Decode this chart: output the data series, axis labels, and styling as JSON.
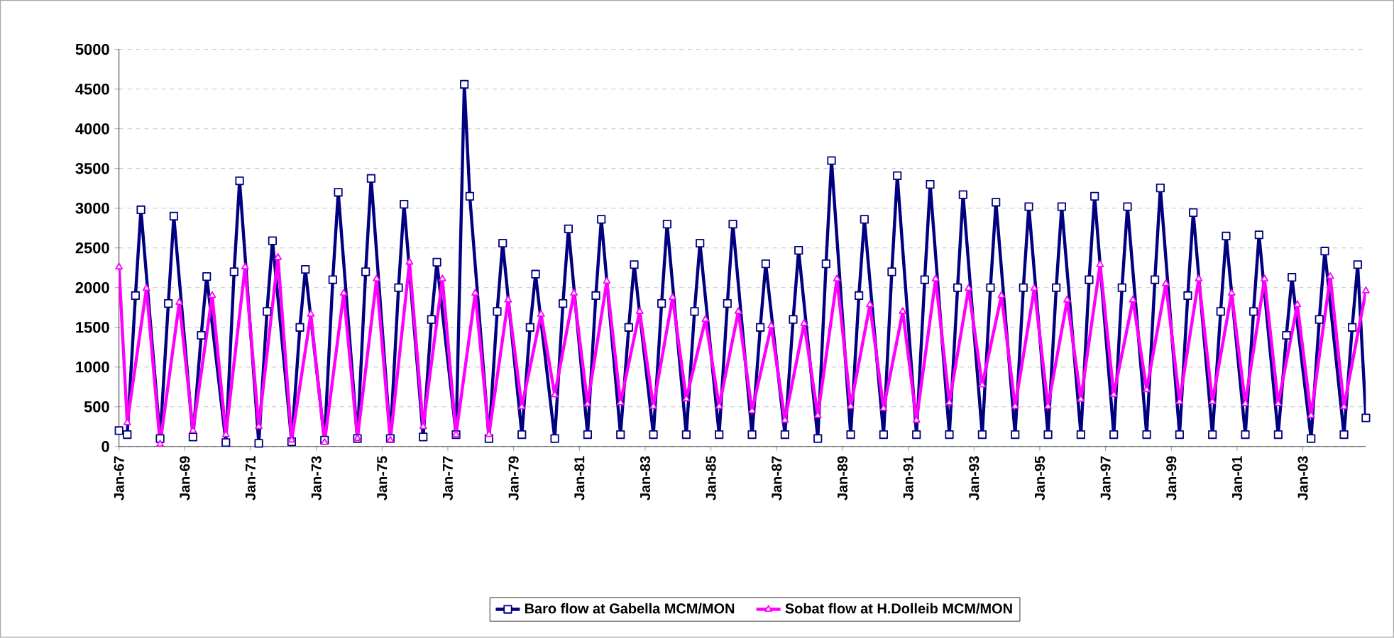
{
  "chart_data": {
    "type": "line",
    "xlim": [
      "1967-01",
      "2004-12"
    ],
    "xticks": [
      {
        "value": "1967-01",
        "label": "Jan-67"
      },
      {
        "value": "1969-01",
        "label": "Jan-69"
      },
      {
        "value": "1971-01",
        "label": "Jan-71"
      },
      {
        "value": "1973-01",
        "label": "Jan-73"
      },
      {
        "value": "1975-01",
        "label": "Jan-75"
      },
      {
        "value": "1977-01",
        "label": "Jan-77"
      },
      {
        "value": "1979-01",
        "label": "Jan-79"
      },
      {
        "value": "1981-01",
        "label": "Jan-81"
      },
      {
        "value": "1983-01",
        "label": "Jan-83"
      },
      {
        "value": "1985-01",
        "label": "Jan-85"
      },
      {
        "value": "1987-01",
        "label": "Jan-87"
      },
      {
        "value": "1989-01",
        "label": "Jan-89"
      },
      {
        "value": "1991-01",
        "label": "Jan-91"
      },
      {
        "value": "1993-01",
        "label": "Jan-93"
      },
      {
        "value": "1995-01",
        "label": "Jan-95"
      },
      {
        "value": "1997-01",
        "label": "Jan-97"
      },
      {
        "value": "1999-01",
        "label": "Jan-99"
      },
      {
        "value": "2001-01",
        "label": "Jan-01"
      },
      {
        "value": "2003-01",
        "label": "Jan-03"
      }
    ],
    "ylim": [
      0,
      5000
    ],
    "yticks": [
      0,
      500,
      1000,
      1500,
      2000,
      2500,
      3000,
      3500,
      4000,
      4500,
      5000
    ],
    "grid": "y",
    "legend": "bottom",
    "line_style": "solid",
    "series": [
      {
        "name": "Baro flow at  Gabella  MCM/MON",
        "color": "#000080",
        "marker": "square",
        "x": [
          "1967-01",
          "1967-04",
          "1967-07",
          "1967-09",
          "1968-04",
          "1968-07",
          "1968-09",
          "1969-04",
          "1969-07",
          "1969-09",
          "1970-04",
          "1970-07",
          "1970-09",
          "1971-04",
          "1971-07",
          "1971-09",
          "1972-04",
          "1972-07",
          "1972-09",
          "1973-04",
          "1973-07",
          "1973-09",
          "1974-04",
          "1974-07",
          "1974-09",
          "1975-04",
          "1975-07",
          "1975-09",
          "1976-04",
          "1976-07",
          "1976-09",
          "1977-04",
          "1977-07",
          "1977-09",
          "1978-04",
          "1978-07",
          "1978-09",
          "1979-04",
          "1979-07",
          "1979-09",
          "1980-04",
          "1980-07",
          "1980-09",
          "1981-04",
          "1981-07",
          "1981-09",
          "1982-04",
          "1982-07",
          "1982-09",
          "1983-04",
          "1983-07",
          "1983-09",
          "1984-04",
          "1984-07",
          "1984-09",
          "1985-04",
          "1985-07",
          "1985-09",
          "1986-04",
          "1986-07",
          "1986-09",
          "1987-04",
          "1987-07",
          "1987-09",
          "1988-04",
          "1988-07",
          "1988-09",
          "1989-04",
          "1989-07",
          "1989-09",
          "1990-04",
          "1990-07",
          "1990-09",
          "1991-04",
          "1991-07",
          "1991-09",
          "1992-04",
          "1992-07",
          "1992-09",
          "1993-04",
          "1993-07",
          "1993-09",
          "1994-04",
          "1994-07",
          "1994-09",
          "1995-04",
          "1995-07",
          "1995-09",
          "1996-04",
          "1996-07",
          "1996-09",
          "1997-04",
          "1997-07",
          "1997-09",
          "1998-04",
          "1998-07",
          "1998-09",
          "1999-04",
          "1999-07",
          "1999-09",
          "2000-04",
          "2000-07",
          "2000-09",
          "2001-04",
          "2001-07",
          "2001-09",
          "2002-04",
          "2002-07",
          "2002-09",
          "2003-04",
          "2003-07",
          "2003-09",
          "2004-04",
          "2004-07",
          "2004-09",
          "2004-12"
        ],
        "values": [
          200,
          150,
          1900,
          2980,
          100,
          1800,
          2900,
          120,
          1400,
          2140,
          50,
          2200,
          3345,
          40,
          1700,
          2590,
          60,
          1500,
          2230,
          80,
          2100,
          3200,
          100,
          2200,
          3375,
          100,
          2000,
          3050,
          120,
          1600,
          2320,
          150,
          4560,
          3150,
          100,
          1700,
          2560,
          150,
          1500,
          2170,
          100,
          1800,
          2740,
          150,
          1900,
          2860,
          150,
          1500,
          2290,
          150,
          1800,
          2800,
          150,
          1700,
          2560,
          150,
          1800,
          2800,
          150,
          1500,
          2300,
          150,
          1600,
          2470,
          100,
          2300,
          3600,
          150,
          1900,
          2860,
          150,
          2200,
          3410,
          150,
          2100,
          3300,
          150,
          2000,
          3170,
          150,
          2000,
          3075,
          150,
          2000,
          3020,
          150,
          2000,
          3020,
          150,
          2100,
          3150,
          150,
          2000,
          3020,
          150,
          2100,
          3255,
          150,
          1900,
          2945,
          150,
          1700,
          2650,
          150,
          1700,
          2665,
          150,
          1400,
          2130,
          100,
          1600,
          2460,
          150,
          1500,
          2290,
          360
        ]
      },
      {
        "name": "Sobat flow at  H.Dolleib  MCM/MON",
        "color": "#ff00ff",
        "marker": "triangle",
        "x": [
          "1967-01",
          "1967-04",
          "1967-11",
          "1968-04",
          "1968-11",
          "1969-04",
          "1969-11",
          "1970-04",
          "1970-11",
          "1971-04",
          "1971-11",
          "1972-04",
          "1972-11",
          "1973-04",
          "1973-11",
          "1974-04",
          "1974-11",
          "1975-04",
          "1975-11",
          "1976-04",
          "1976-11",
          "1977-04",
          "1977-11",
          "1978-04",
          "1978-11",
          "1979-04",
          "1979-11",
          "1980-04",
          "1980-11",
          "1981-04",
          "1981-11",
          "1982-04",
          "1982-11",
          "1983-04",
          "1983-11",
          "1984-04",
          "1984-11",
          "1985-04",
          "1985-11",
          "1986-04",
          "1986-11",
          "1987-04",
          "1987-11",
          "1988-04",
          "1988-11",
          "1989-04",
          "1989-11",
          "1990-04",
          "1990-11",
          "1991-04",
          "1991-11",
          "1992-04",
          "1992-11",
          "1993-04",
          "1993-11",
          "1994-04",
          "1994-11",
          "1995-04",
          "1995-11",
          "1996-04",
          "1996-11",
          "1997-04",
          "1997-11",
          "1998-04",
          "1998-11",
          "1999-04",
          "1999-11",
          "2000-04",
          "2000-11",
          "2001-04",
          "2001-11",
          "2002-04",
          "2002-11",
          "2003-04",
          "2003-11",
          "2004-04",
          "2004-12"
        ],
        "values": [
          2260,
          300,
          1990,
          30,
          1815,
          200,
          1900,
          150,
          2260,
          250,
          2380,
          80,
          1665,
          50,
          1930,
          100,
          2110,
          80,
          2320,
          250,
          2110,
          150,
          1930,
          150,
          1845,
          500,
          1665,
          650,
          1930,
          535,
          2080,
          550,
          1700,
          505,
          1875,
          600,
          1600,
          505,
          1700,
          450,
          1520,
          330,
          1550,
          390,
          2110,
          505,
          1785,
          480,
          1700,
          330,
          2110,
          550,
          1990,
          775,
          1900,
          505,
          1990,
          505,
          1845,
          595,
          2290,
          655,
          1845,
          715,
          2050,
          565,
          2110,
          565,
          1930,
          540,
          2110,
          540,
          1785,
          390,
          2140,
          500,
          1960
        ]
      }
    ]
  }
}
